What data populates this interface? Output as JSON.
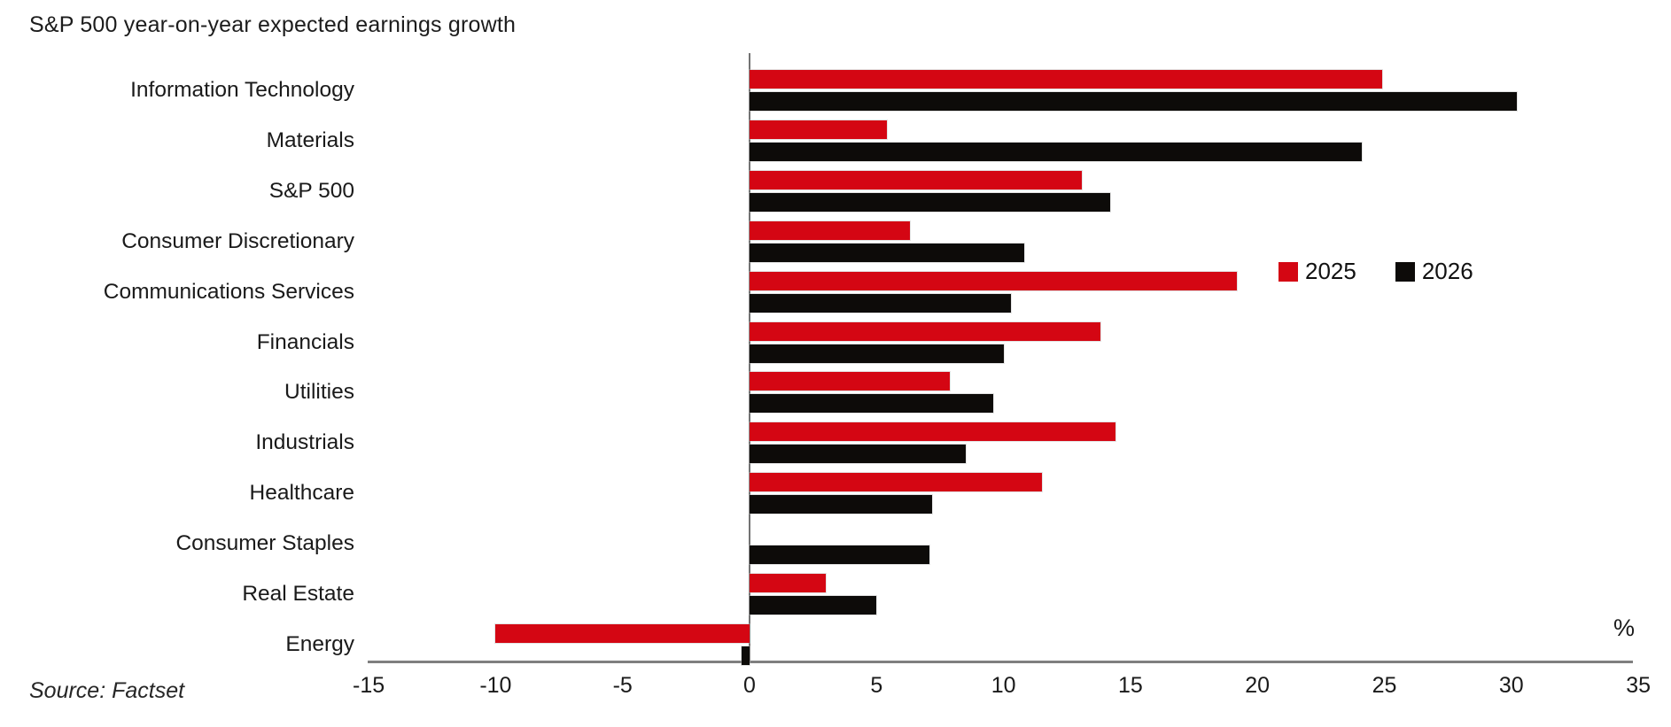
{
  "title": "S&P 500 year-on-year expected earnings growth",
  "source": "Source: Factset",
  "unit_label": "%",
  "colors": {
    "series_2025": "#d40613",
    "series_2026": "#0d0b09",
    "axis": "#7f7f7f",
    "text": "#1a1a1a"
  },
  "legend": {
    "items": [
      {
        "label": "2025",
        "color": "#d40613"
      },
      {
        "label": "2026",
        "color": "#0d0b09"
      }
    ]
  },
  "chart_data": {
    "type": "bar",
    "orientation": "horizontal",
    "title": "S&P 500 year-on-year expected earnings growth",
    "categories": [
      "Information Technology",
      "Materials",
      "S&P 500",
      "Consumer Discretionary",
      "Communications Services",
      "Financials",
      "Utilities",
      "Industrials",
      "Healthcare",
      "Consumer Staples",
      "Real Estate",
      "Energy"
    ],
    "series": [
      {
        "name": "2025",
        "color": "#d40613",
        "values": [
          24.9,
          5.4,
          13.1,
          6.3,
          19.2,
          13.8,
          7.9,
          14.4,
          11.5,
          0,
          3.0,
          -10.0
        ]
      },
      {
        "name": "2026",
        "color": "#0d0b09",
        "values": [
          30.2,
          24.1,
          14.2,
          10.8,
          10.3,
          10.0,
          9.6,
          8.5,
          7.2,
          7.1,
          5.0,
          -0.3
        ]
      }
    ],
    "x_ticks": [
      -15,
      -10,
      -5,
      0,
      5,
      10,
      15,
      20,
      25,
      30,
      35
    ],
    "xlim": [
      -15,
      35
    ],
    "xlabel": "%",
    "grid": false,
    "legend_position": "right-middle",
    "source": "Source: Factset"
  }
}
